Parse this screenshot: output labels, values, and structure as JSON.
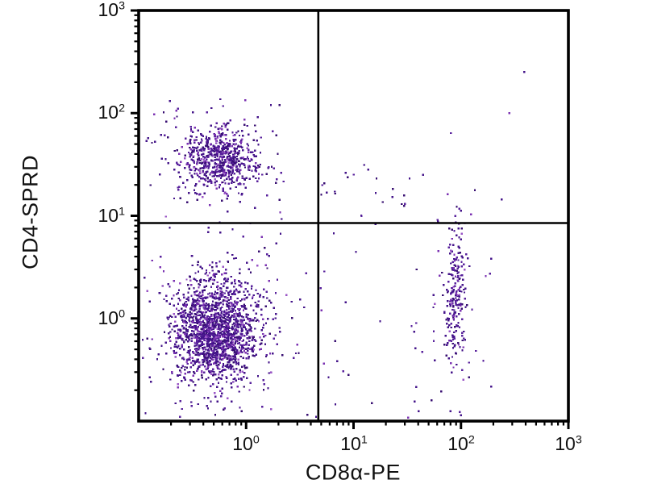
{
  "chart_data": {
    "type": "scatter",
    "subtype": "flow-cytometry-quadrant-dot-plot",
    "title": "",
    "xlabel": "CD8α-PE",
    "ylabel": "CD4-SPRD",
    "x_scale": "log",
    "y_scale": "log",
    "x_range_log10": [
      -1,
      3
    ],
    "y_range_log10": [
      -1,
      3
    ],
    "tick_base": "10",
    "x_tick_exponents": [
      0,
      1,
      2,
      3
    ],
    "y_tick_exponents": [
      0,
      1,
      2,
      3
    ],
    "grid": false,
    "legend": "none",
    "quadrant_gates": {
      "x_value": 4.7,
      "y_value": 8.5
    },
    "dot_palette": [
      "#44148a",
      "#58219c",
      "#380f72",
      "#7b32b2",
      "#9a55c6"
    ],
    "dot_palette_weights": [
      0.45,
      0.22,
      0.15,
      0.12,
      0.06
    ],
    "axis_color": "#000000",
    "gate_line_color": "#000000",
    "background_color": "#ffffff",
    "clusters": [
      {
        "name": "CD4+CD8- (upper-left)",
        "n": 600,
        "cx_log": -0.25,
        "cy_log": 1.55,
        "sx": 0.17,
        "sy": 0.15
      },
      {
        "name": "CD4+CD8- halo",
        "n": 90,
        "cx_log": -0.25,
        "cy_log": 1.55,
        "sx": 0.33,
        "sy": 0.28
      },
      {
        "name": "CD4-CD8- (lower-left)",
        "n": 1600,
        "cx_log": -0.28,
        "cy_log": -0.13,
        "sx": 0.2,
        "sy": 0.26
      },
      {
        "name": "CD4-CD8- halo",
        "n": 160,
        "cx_log": -0.28,
        "cy_log": -0.15,
        "sx": 0.38,
        "sy": 0.42
      },
      {
        "name": "CD4-CD8+ (lower-right)",
        "n": 200,
        "cx_log": 1.95,
        "cy_log": 0.2,
        "sx": 0.055,
        "sy": 0.38
      },
      {
        "name": "CD4-CD8+ halo",
        "n": 45,
        "cx_log": 1.95,
        "cy_log": 0.05,
        "sx": 0.17,
        "sy": 0.6
      }
    ],
    "sparse_scatter": [
      {
        "name": "lower-mid background",
        "n": 70,
        "x_min": -1.0,
        "x_max": 2.2,
        "y_min": -1.0,
        "y_max": 1.4
      },
      {
        "name": "upper-right low band",
        "n": 20,
        "x_min": 0.6,
        "x_max": 2.2,
        "y_min": 0.95,
        "y_max": 1.5
      },
      {
        "name": "upper-left high sparse",
        "n": 18,
        "x_min": -0.95,
        "x_max": 0.35,
        "y_min": 1.7,
        "y_max": 2.12
      }
    ],
    "outlier_points_log10": [
      {
        "x": 2.59,
        "y": 2.4
      },
      {
        "x": 2.45,
        "y": 2.0
      }
    ]
  }
}
